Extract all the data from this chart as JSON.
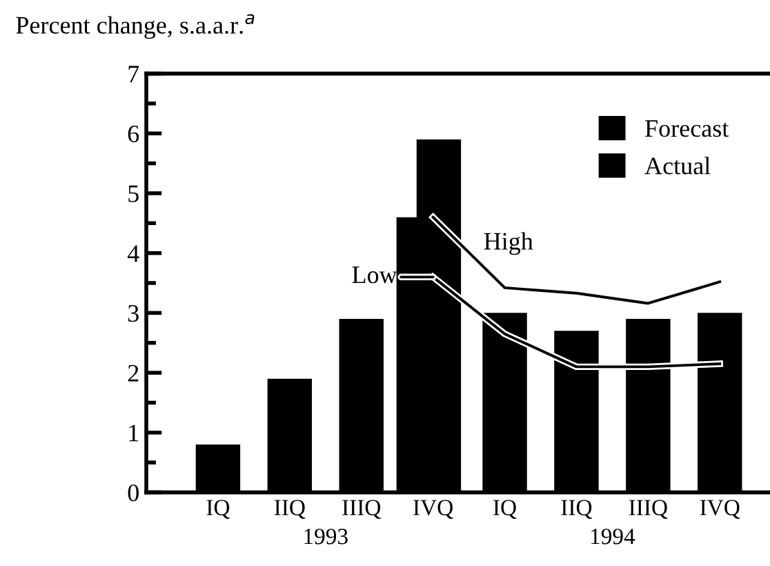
{
  "chart_data": {
    "type": "bar",
    "ylabel": "Percent change, s.a.a.r.$^{a}$",
    "categories": [
      "IQ",
      "IIQ",
      "IIIQ",
      "IVQ",
      "IQ",
      "IIQ",
      "IIIQ",
      "IVQ"
    ],
    "series": [
      {
        "name": "Forecast",
        "color": "#000000",
        "values": [
          null,
          null,
          null,
          4.6,
          3.0,
          2.7,
          2.9,
          3.0
        ]
      },
      {
        "name": "Actual",
        "color": "#000000",
        "values": [
          0.8,
          1.9,
          2.9,
          5.9,
          null,
          null,
          null,
          null
        ]
      },
      {
        "name": "High",
        "type": "line",
        "color": "#000000",
        "values": [
          null,
          null,
          null,
          4.6,
          3.42,
          3.33,
          3.16,
          3.52
        ]
      },
      {
        "name": "Low",
        "type": "line",
        "color": "#000000",
        "values": [
          null,
          null,
          null,
          3.6,
          2.65,
          2.1,
          2.1,
          2.15
        ]
      }
    ],
    "annotations": [
      "1993",
      "1994"
    ],
    "ylim": [
      0,
      7
    ],
    "yticks": [
      0,
      1,
      2,
      3,
      4,
      5,
      6,
      7
    ],
    "grid": false,
    "legend": "top right"
  }
}
